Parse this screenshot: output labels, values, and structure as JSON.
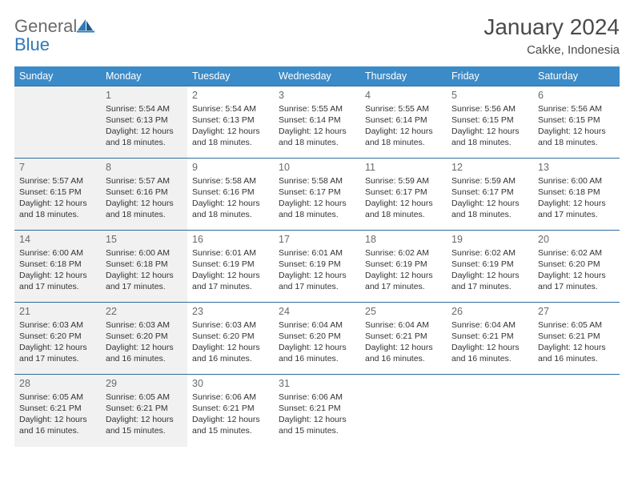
{
  "logo": {
    "text1": "General",
    "text2": "Blue"
  },
  "title": "January 2024",
  "location": "Cakke, Indonesia",
  "colors": {
    "header_bg": "#3b8bc9",
    "header_text": "#ffffff",
    "row_border": "#2f6da0",
    "shade_bg": "#f1f1f1",
    "daynum": "#6a6a6a",
    "body_text": "#333333",
    "title_text": "#4a4a4a",
    "logo_gray": "#6b6b6b",
    "logo_blue": "#2f78b7"
  },
  "weekdays": [
    "Sunday",
    "Monday",
    "Tuesday",
    "Wednesday",
    "Thursday",
    "Friday",
    "Saturday"
  ],
  "weeks": [
    [
      {
        "blank": true,
        "shade": true
      },
      {
        "n": "1",
        "sr": "Sunrise: 5:54 AM",
        "ss": "Sunset: 6:13 PM",
        "d1": "Daylight: 12 hours",
        "d2": "and 18 minutes.",
        "shade": true
      },
      {
        "n": "2",
        "sr": "Sunrise: 5:54 AM",
        "ss": "Sunset: 6:13 PM",
        "d1": "Daylight: 12 hours",
        "d2": "and 18 minutes."
      },
      {
        "n": "3",
        "sr": "Sunrise: 5:55 AM",
        "ss": "Sunset: 6:14 PM",
        "d1": "Daylight: 12 hours",
        "d2": "and 18 minutes."
      },
      {
        "n": "4",
        "sr": "Sunrise: 5:55 AM",
        "ss": "Sunset: 6:14 PM",
        "d1": "Daylight: 12 hours",
        "d2": "and 18 minutes."
      },
      {
        "n": "5",
        "sr": "Sunrise: 5:56 AM",
        "ss": "Sunset: 6:15 PM",
        "d1": "Daylight: 12 hours",
        "d2": "and 18 minutes."
      },
      {
        "n": "6",
        "sr": "Sunrise: 5:56 AM",
        "ss": "Sunset: 6:15 PM",
        "d1": "Daylight: 12 hours",
        "d2": "and 18 minutes."
      }
    ],
    [
      {
        "n": "7",
        "sr": "Sunrise: 5:57 AM",
        "ss": "Sunset: 6:15 PM",
        "d1": "Daylight: 12 hours",
        "d2": "and 18 minutes.",
        "shade": true
      },
      {
        "n": "8",
        "sr": "Sunrise: 5:57 AM",
        "ss": "Sunset: 6:16 PM",
        "d1": "Daylight: 12 hours",
        "d2": "and 18 minutes.",
        "shade": true
      },
      {
        "n": "9",
        "sr": "Sunrise: 5:58 AM",
        "ss": "Sunset: 6:16 PM",
        "d1": "Daylight: 12 hours",
        "d2": "and 18 minutes."
      },
      {
        "n": "10",
        "sr": "Sunrise: 5:58 AM",
        "ss": "Sunset: 6:17 PM",
        "d1": "Daylight: 12 hours",
        "d2": "and 18 minutes."
      },
      {
        "n": "11",
        "sr": "Sunrise: 5:59 AM",
        "ss": "Sunset: 6:17 PM",
        "d1": "Daylight: 12 hours",
        "d2": "and 18 minutes."
      },
      {
        "n": "12",
        "sr": "Sunrise: 5:59 AM",
        "ss": "Sunset: 6:17 PM",
        "d1": "Daylight: 12 hours",
        "d2": "and 18 minutes."
      },
      {
        "n": "13",
        "sr": "Sunrise: 6:00 AM",
        "ss": "Sunset: 6:18 PM",
        "d1": "Daylight: 12 hours",
        "d2": "and 17 minutes."
      }
    ],
    [
      {
        "n": "14",
        "sr": "Sunrise: 6:00 AM",
        "ss": "Sunset: 6:18 PM",
        "d1": "Daylight: 12 hours",
        "d2": "and 17 minutes.",
        "shade": true
      },
      {
        "n": "15",
        "sr": "Sunrise: 6:00 AM",
        "ss": "Sunset: 6:18 PM",
        "d1": "Daylight: 12 hours",
        "d2": "and 17 minutes.",
        "shade": true
      },
      {
        "n": "16",
        "sr": "Sunrise: 6:01 AM",
        "ss": "Sunset: 6:19 PM",
        "d1": "Daylight: 12 hours",
        "d2": "and 17 minutes."
      },
      {
        "n": "17",
        "sr": "Sunrise: 6:01 AM",
        "ss": "Sunset: 6:19 PM",
        "d1": "Daylight: 12 hours",
        "d2": "and 17 minutes."
      },
      {
        "n": "18",
        "sr": "Sunrise: 6:02 AM",
        "ss": "Sunset: 6:19 PM",
        "d1": "Daylight: 12 hours",
        "d2": "and 17 minutes."
      },
      {
        "n": "19",
        "sr": "Sunrise: 6:02 AM",
        "ss": "Sunset: 6:19 PM",
        "d1": "Daylight: 12 hours",
        "d2": "and 17 minutes."
      },
      {
        "n": "20",
        "sr": "Sunrise: 6:02 AM",
        "ss": "Sunset: 6:20 PM",
        "d1": "Daylight: 12 hours",
        "d2": "and 17 minutes."
      }
    ],
    [
      {
        "n": "21",
        "sr": "Sunrise: 6:03 AM",
        "ss": "Sunset: 6:20 PM",
        "d1": "Daylight: 12 hours",
        "d2": "and 17 minutes.",
        "shade": true
      },
      {
        "n": "22",
        "sr": "Sunrise: 6:03 AM",
        "ss": "Sunset: 6:20 PM",
        "d1": "Daylight: 12 hours",
        "d2": "and 16 minutes.",
        "shade": true
      },
      {
        "n": "23",
        "sr": "Sunrise: 6:03 AM",
        "ss": "Sunset: 6:20 PM",
        "d1": "Daylight: 12 hours",
        "d2": "and 16 minutes."
      },
      {
        "n": "24",
        "sr": "Sunrise: 6:04 AM",
        "ss": "Sunset: 6:20 PM",
        "d1": "Daylight: 12 hours",
        "d2": "and 16 minutes."
      },
      {
        "n": "25",
        "sr": "Sunrise: 6:04 AM",
        "ss": "Sunset: 6:21 PM",
        "d1": "Daylight: 12 hours",
        "d2": "and 16 minutes."
      },
      {
        "n": "26",
        "sr": "Sunrise: 6:04 AM",
        "ss": "Sunset: 6:21 PM",
        "d1": "Daylight: 12 hours",
        "d2": "and 16 minutes."
      },
      {
        "n": "27",
        "sr": "Sunrise: 6:05 AM",
        "ss": "Sunset: 6:21 PM",
        "d1": "Daylight: 12 hours",
        "d2": "and 16 minutes."
      }
    ],
    [
      {
        "n": "28",
        "sr": "Sunrise: 6:05 AM",
        "ss": "Sunset: 6:21 PM",
        "d1": "Daylight: 12 hours",
        "d2": "and 16 minutes.",
        "shade": true
      },
      {
        "n": "29",
        "sr": "Sunrise: 6:05 AM",
        "ss": "Sunset: 6:21 PM",
        "d1": "Daylight: 12 hours",
        "d2": "and 15 minutes.",
        "shade": true
      },
      {
        "n": "30",
        "sr": "Sunrise: 6:06 AM",
        "ss": "Sunset: 6:21 PM",
        "d1": "Daylight: 12 hours",
        "d2": "and 15 minutes."
      },
      {
        "n": "31",
        "sr": "Sunrise: 6:06 AM",
        "ss": "Sunset: 6:21 PM",
        "d1": "Daylight: 12 hours",
        "d2": "and 15 minutes."
      },
      {
        "blank": true
      },
      {
        "blank": true
      },
      {
        "blank": true
      }
    ]
  ]
}
